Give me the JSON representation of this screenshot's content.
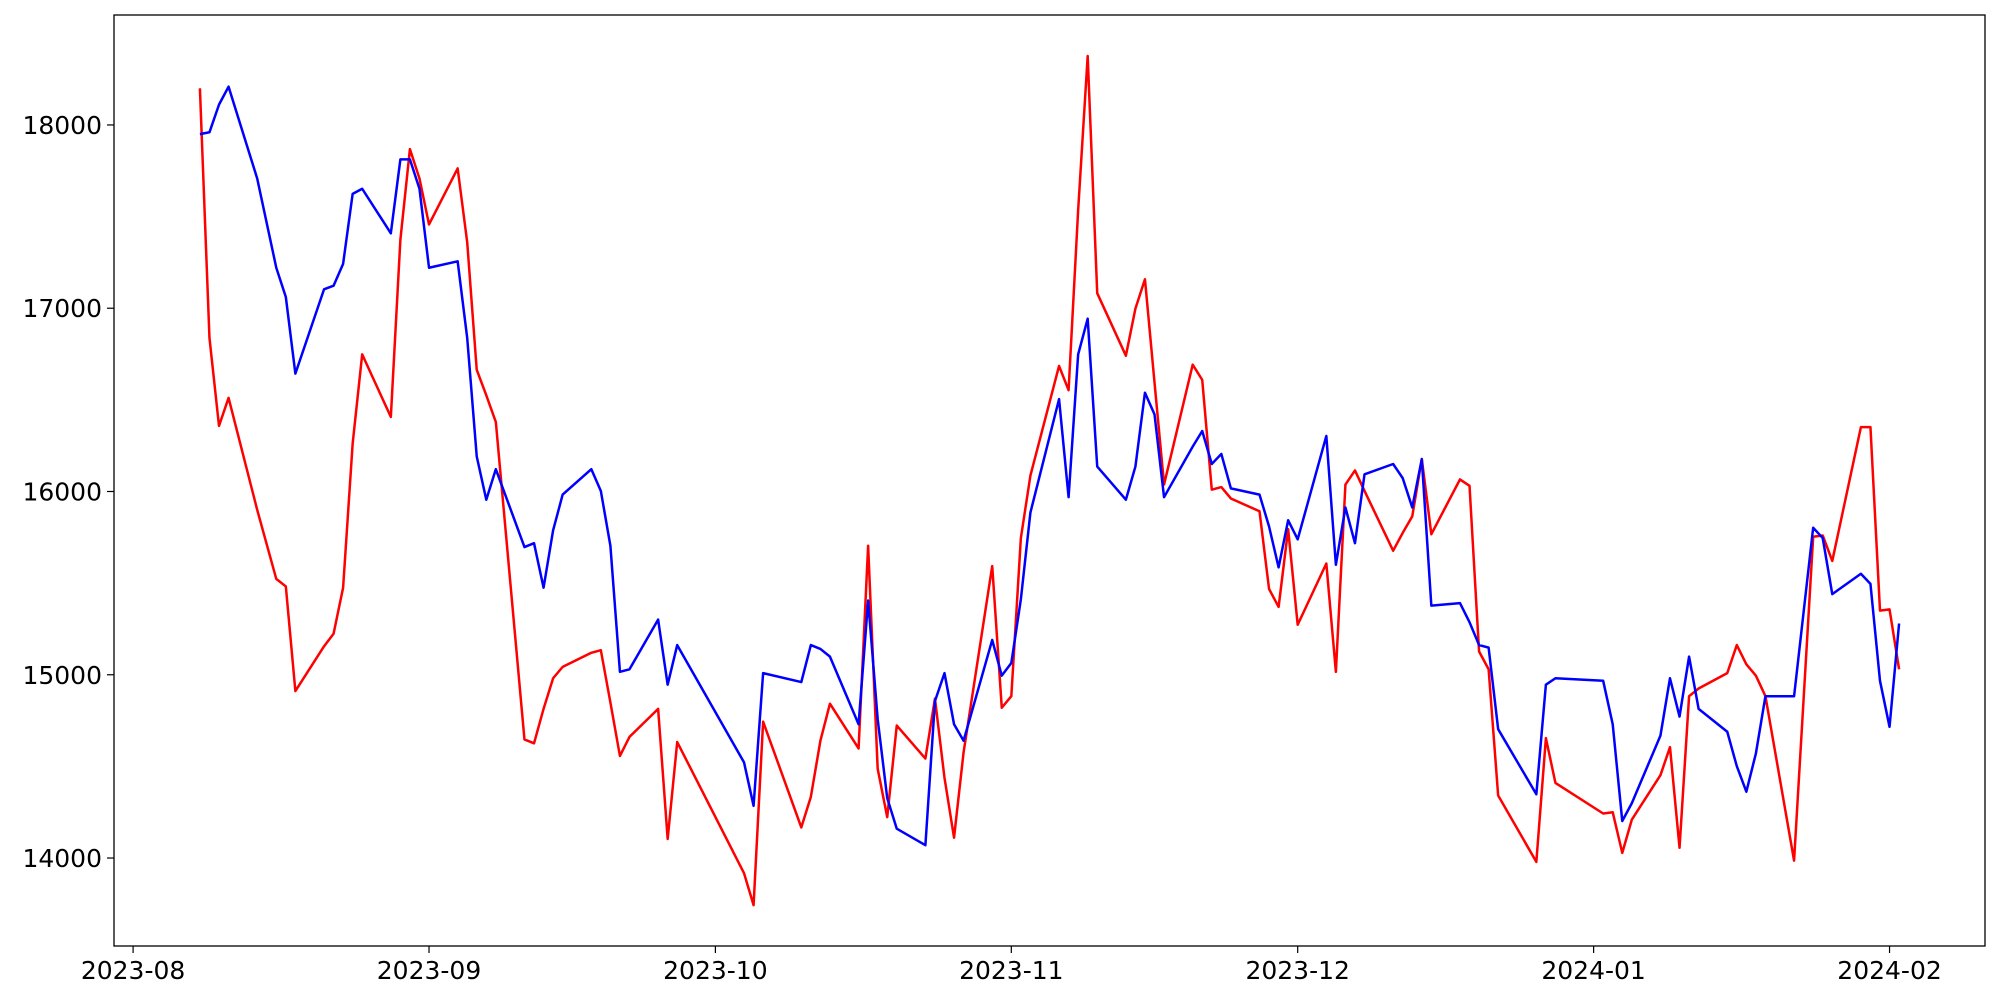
{
  "chart_data": {
    "type": "line",
    "x": [
      "2023-08-08",
      "2023-08-09",
      "2023-08-10",
      "2023-08-11",
      "2023-08-14",
      "2023-08-16",
      "2023-08-17",
      "2023-08-18",
      "2023-08-21",
      "2023-08-22",
      "2023-08-23",
      "2023-08-24",
      "2023-08-25",
      "2023-08-28",
      "2023-08-29",
      "2023-08-30",
      "2023-08-31",
      "2023-09-01",
      "2023-09-04",
      "2023-09-05",
      "2023-09-06",
      "2023-09-07",
      "2023-09-08",
      "2023-09-11",
      "2023-09-12",
      "2023-09-13",
      "2023-09-14",
      "2023-09-15",
      "2023-09-18",
      "2023-09-19",
      "2023-09-20",
      "2023-09-21",
      "2023-09-22",
      "2023-09-25",
      "2023-09-26",
      "2023-09-27",
      "2023-10-04",
      "2023-10-05",
      "2023-10-06",
      "2023-10-10",
      "2023-10-11",
      "2023-10-12",
      "2023-10-13",
      "2023-10-16",
      "2023-10-17",
      "2023-10-18",
      "2023-10-19",
      "2023-10-20",
      "2023-10-23",
      "2023-10-24",
      "2023-10-25",
      "2023-10-26",
      "2023-10-27",
      "2023-10-30",
      "2023-10-31",
      "2023-11-01",
      "2023-11-02",
      "2023-11-03",
      "2023-11-06",
      "2023-11-07",
      "2023-11-08",
      "2023-11-09",
      "2023-11-10",
      "2023-11-13",
      "2023-11-14",
      "2023-11-15",
      "2023-11-16",
      "2023-11-17",
      "2023-11-20",
      "2023-11-21",
      "2023-11-22",
      "2023-11-23",
      "2023-11-24",
      "2023-11-27",
      "2023-11-28",
      "2023-11-29",
      "2023-11-30",
      "2023-12-01",
      "2023-12-04",
      "2023-12-05",
      "2023-12-06",
      "2023-12-07",
      "2023-12-08",
      "2023-12-11",
      "2023-12-12",
      "2023-12-13",
      "2023-12-14",
      "2023-12-15",
      "2023-12-18",
      "2023-12-19",
      "2023-12-20",
      "2023-12-21",
      "2023-12-22",
      "2023-12-26",
      "2023-12-27",
      "2023-12-28",
      "2024-01-02",
      "2024-01-03",
      "2024-01-04",
      "2024-01-05",
      "2024-01-08",
      "2024-01-09",
      "2024-01-10",
      "2024-01-11",
      "2024-01-12",
      "2024-01-15",
      "2024-01-16",
      "2024-01-17",
      "2024-01-18",
      "2024-01-19",
      "2024-01-22",
      "2024-01-23",
      "2024-01-24",
      "2024-01-25",
      "2024-01-26",
      "2024-01-29",
      "2024-01-30",
      "2024-01-31",
      "2024-02-01",
      "2024-02-02"
    ],
    "series": [
      {
        "color": "#ff0000",
        "values": [
          18200,
          16838,
          16358,
          16511,
          15900,
          15523,
          15482,
          14911,
          15155,
          15224,
          15475,
          16261,
          16748,
          16407,
          17374,
          17868,
          17708,
          17457,
          17763,
          17360,
          16664,
          16525,
          16379,
          14647,
          14626,
          14814,
          14981,
          15043,
          15120,
          15134,
          14849,
          14557,
          14661,
          14814,
          14104,
          14633,
          13917,
          13743,
          14744,
          14167,
          14334,
          14640,
          14842,
          14598,
          15704,
          14487,
          14223,
          14723,
          14543,
          14870,
          14438,
          14111,
          14577,
          15593,
          14820,
          14883,
          15746,
          16087,
          16685,
          16553,
          17534,
          18376,
          17082,
          16741,
          16998,
          17158,
          16595,
          16038,
          16692,
          16609,
          16010,
          16024,
          15962,
          15892,
          15468,
          15370,
          15795,
          15273,
          15607,
          15016,
          16038,
          16115,
          16003,
          15677,
          15774,
          15864,
          16177,
          15767,
          16066,
          16031,
          15127,
          15030,
          14341,
          13979,
          14654,
          14410,
          14243,
          14250,
          14028,
          14209,
          14452,
          14605,
          14056,
          14883,
          14925,
          15009,
          15162,
          15057,
          14995,
          14883,
          13986,
          14870,
          15753,
          15760,
          15621,
          16351,
          16351,
          15350,
          15357,
          15030
        ]
      },
      {
        "color": "#0000ff",
        "values": [
          17950,
          17960,
          18111,
          18209,
          17708,
          17221,
          17061,
          16643,
          17103,
          17123,
          17242,
          17624,
          17652,
          17409,
          17812,
          17812,
          17652,
          17221,
          17256,
          16838,
          16191,
          15955,
          16122,
          15697,
          15718,
          15475,
          15788,
          15983,
          16122,
          16003,
          15704,
          15016,
          15030,
          15301,
          14946,
          15162,
          14522,
          14285,
          15009,
          14960,
          15162,
          15141,
          15099,
          14730,
          15405,
          14758,
          14327,
          14160,
          14070,
          14856,
          15009,
          14730,
          14640,
          15190,
          14995,
          15064,
          15412,
          15885,
          16504,
          15969,
          16748,
          16943,
          16136,
          15955,
          16136,
          16539,
          16421,
          15969,
          16245,
          16330,
          16150,
          16205,
          16017,
          15983,
          15809,
          15586,
          15843,
          15739,
          16303,
          15600,
          15913,
          15718,
          16094,
          16150,
          16073,
          15913,
          16177,
          15377,
          15391,
          15287,
          15162,
          15148,
          14703,
          14348,
          14946,
          14981,
          14967,
          14730,
          14202,
          14299,
          14668,
          14981,
          14772,
          15099,
          14814,
          14689,
          14501,
          14362,
          14571,
          14883,
          14883,
          15343,
          15802,
          15746,
          15440,
          15551,
          15496,
          14967,
          14716,
          15280
        ]
      }
    ],
    "xlim": [
      "2023-07-30",
      "2024-02-11"
    ],
    "xticks": [
      {
        "value": "2023-08-01",
        "label": "2023-08"
      },
      {
        "value": "2023-09-01",
        "label": "2023-09"
      },
      {
        "value": "2023-10-01",
        "label": "2023-10"
      },
      {
        "value": "2023-11-01",
        "label": "2023-11"
      },
      {
        "value": "2023-12-01",
        "label": "2023-12"
      },
      {
        "value": "2024-01-01",
        "label": "2024-01"
      },
      {
        "value": "2024-02-01",
        "label": "2024-02"
      }
    ],
    "ylim": [
      13520,
      18600
    ],
    "yticks": [
      14000,
      15000,
      16000,
      17000,
      18000
    ],
    "grid": false
  }
}
